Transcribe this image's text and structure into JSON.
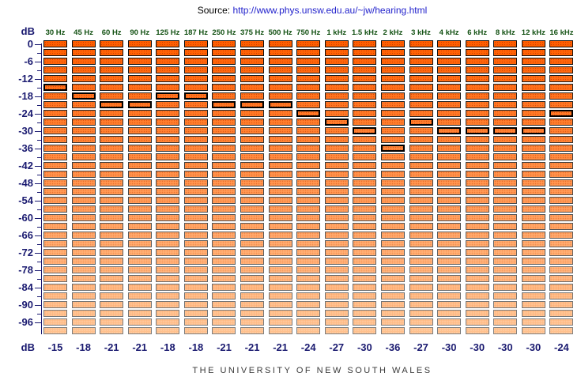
{
  "header": {
    "source_label": "Source:",
    "source_url": "http://www.phys.unsw.edu.au/~jw/hearing.html"
  },
  "axis": {
    "unit_label_top": "dB",
    "unit_label_bottom": "dB",
    "max_db": 0,
    "min_db": -96,
    "major_step_db": 6,
    "minor_step_db": 3,
    "major_labels": [
      "0",
      "-6",
      "-12",
      "-18",
      "-24",
      "-30",
      "-36",
      "-42",
      "-48",
      "-54",
      "-60",
      "-66",
      "-72",
      "-78",
      "-84",
      "-90",
      "-96"
    ]
  },
  "results_row": {
    "unit_label": "dB",
    "value_labels": [
      "-15",
      "-18",
      "-21",
      "-21",
      "-18",
      "-18",
      "-21",
      "-21",
      "-21",
      "-24",
      "-27",
      "-30",
      "-36",
      "-27",
      "-30",
      "-30",
      "-30",
      "-30",
      "-24"
    ]
  },
  "footer": {
    "caption": "THE UNIVERSITY OF NEW SOUTH WALES"
  },
  "colors": {
    "label_navy": "#1a1a70",
    "freq_label_green": "#145214",
    "link_blue": "#2222cc",
    "block_top_orange": "#ff5e00",
    "block_bottom_peach": "#ffc18e",
    "selected_border": "#000000",
    "footer_gray": "#3a3a3a"
  },
  "chart_data": {
    "type": "bar",
    "categories": [
      "30 Hz",
      "45 Hz",
      "60 Hz",
      "90 Hz",
      "125 Hz",
      "187 Hz",
      "250 Hz",
      "375 Hz",
      "500 Hz",
      "750 Hz",
      "1 kHz",
      "1.5 kHz",
      "2 kHz",
      "3 kHz",
      "4 kHz",
      "6 kHz",
      "8 kHz",
      "12 kHz",
      "16 kHz"
    ],
    "values": [
      -15,
      -18,
      -21,
      -21,
      -18,
      -18,
      -21,
      -21,
      -21,
      -24,
      -27,
      -30,
      -36,
      -27,
      -30,
      -30,
      -30,
      -30,
      -24
    ],
    "ylabel": "dB",
    "ylim": [
      -99,
      0
    ],
    "block_step_db": 3,
    "blocks_per_column": 34,
    "axis_minor_tick_db": 3,
    "axis_major_tick_db": 6,
    "legend": "none",
    "grid": false
  }
}
